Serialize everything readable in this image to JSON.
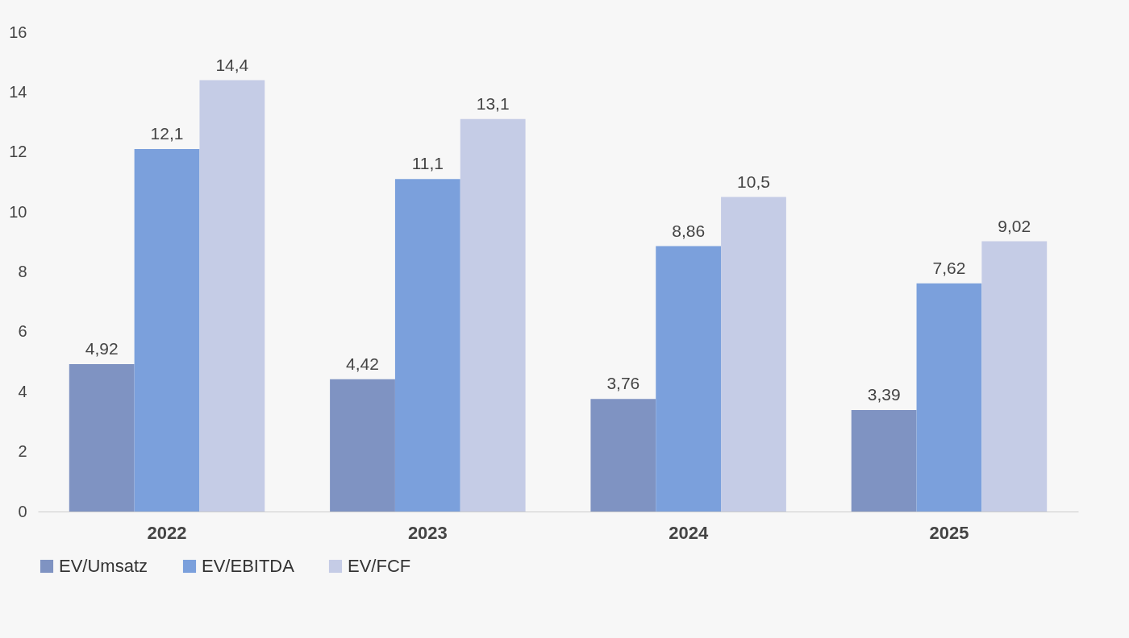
{
  "chart_data": {
    "type": "bar",
    "categories": [
      "2022",
      "2023",
      "2024",
      "2025"
    ],
    "series": [
      {
        "name": "EV/Umsatz",
        "color": "#7f93c2",
        "values": [
          4.92,
          4.42,
          3.76,
          3.39
        ],
        "value_labels": [
          "4,92",
          "4,42",
          "3,76",
          "3,39"
        ]
      },
      {
        "name": "EV/EBITDA",
        "color": "#7ba0dc",
        "values": [
          12.1,
          11.1,
          8.86,
          7.62
        ],
        "value_labels": [
          "12,1",
          "11,1",
          "8,86",
          "7,62"
        ]
      },
      {
        "name": "EV/FCF",
        "color": "#c5cce6",
        "values": [
          14.4,
          13.1,
          10.5,
          9.02
        ],
        "value_labels": [
          "14,4",
          "13,1",
          "10,5",
          "9,02"
        ]
      }
    ],
    "ylim": [
      0,
      16
    ],
    "yticks": [
      0,
      2,
      4,
      6,
      8,
      10,
      12,
      14,
      16
    ],
    "grid": false,
    "legend": "bottom"
  }
}
